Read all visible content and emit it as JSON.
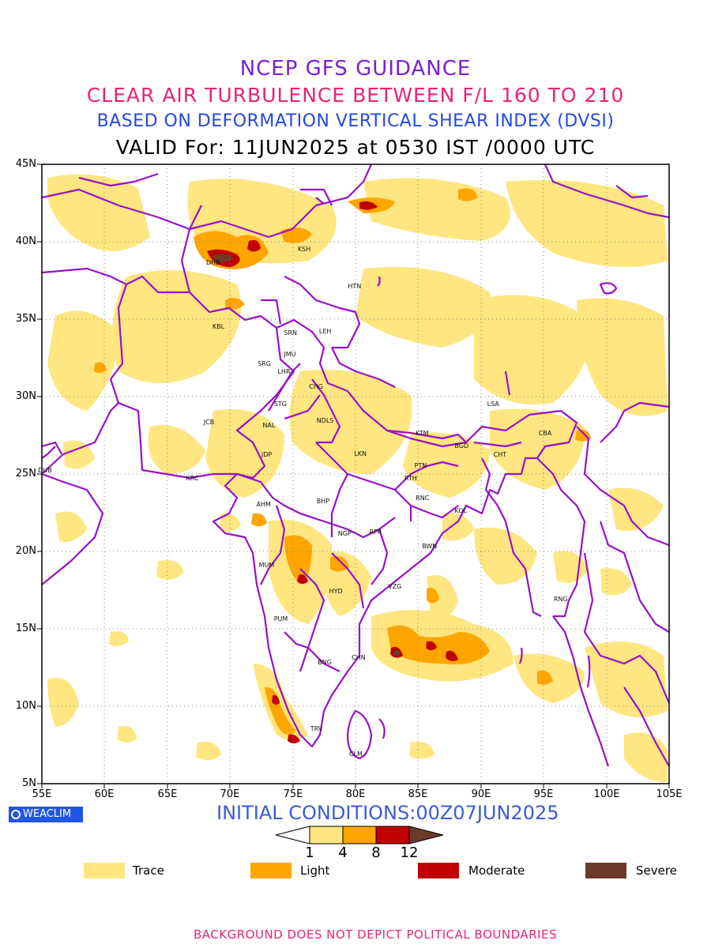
{
  "title": {
    "line1": "NCEP GFS GUIDANCE",
    "line2": "CLEAR AIR TURBULENCE BETWEEN F/L 160 TO 210",
    "line3": "BASED ON DEFORMATION VERTICAL SHEAR INDEX (DVSI)",
    "line4": "VALID For: 11JUN2025 at 0530 IST /0000 UTC"
  },
  "axes": {
    "lat_labels": [
      "45N",
      "40N",
      "35N",
      "30N",
      "25N",
      "20N",
      "15N",
      "10N",
      "5N"
    ],
    "lon_labels": [
      "55E",
      "60E",
      "65E",
      "70E",
      "75E",
      "80E",
      "85E",
      "90E",
      "95E",
      "100E",
      "105E"
    ]
  },
  "stations": [
    {
      "code": "KSH",
      "lon": 75.9,
      "lat": 39.5
    },
    {
      "code": "DHB",
      "lon": 68.6,
      "lat": 38.6
    },
    {
      "code": "HTN",
      "lon": 79.9,
      "lat": 37.1
    },
    {
      "code": "KBL",
      "lon": 69.1,
      "lat": 34.5
    },
    {
      "code": "SRN",
      "lon": 74.8,
      "lat": 34.1
    },
    {
      "code": "LEH",
      "lon": 77.6,
      "lat": 34.2
    },
    {
      "code": "JMU",
      "lon": 74.8,
      "lat": 32.7
    },
    {
      "code": "SRG",
      "lon": 72.7,
      "lat": 32.1
    },
    {
      "code": "LHR",
      "lon": 74.3,
      "lat": 31.6
    },
    {
      "code": "CHG",
      "lon": 76.8,
      "lat": 30.6
    },
    {
      "code": "STG",
      "lon": 74.0,
      "lat": 29.5
    },
    {
      "code": "JCB",
      "lon": 68.4,
      "lat": 28.3
    },
    {
      "code": "NAL",
      "lon": 73.1,
      "lat": 28.1
    },
    {
      "code": "NDLS",
      "lon": 77.4,
      "lat": 28.4
    },
    {
      "code": "LSA",
      "lon": 91.0,
      "lat": 29.5
    },
    {
      "code": "KTM",
      "lon": 85.3,
      "lat": 27.6
    },
    {
      "code": "BGD",
      "lon": 88.4,
      "lat": 26.8
    },
    {
      "code": "CHT",
      "lon": 91.5,
      "lat": 26.2
    },
    {
      "code": "CBA",
      "lon": 95.1,
      "lat": 27.6
    },
    {
      "code": "JDP",
      "lon": 73.0,
      "lat": 26.2
    },
    {
      "code": "LKN",
      "lon": 80.4,
      "lat": 26.3
    },
    {
      "code": "PTN",
      "lon": 85.2,
      "lat": 25.5
    },
    {
      "code": "DUB",
      "lon": 55.2,
      "lat": 25.2
    },
    {
      "code": "KRC",
      "lon": 67.0,
      "lat": 24.7
    },
    {
      "code": "RTH",
      "lon": 84.4,
      "lat": 24.7
    },
    {
      "code": "BHP",
      "lon": 77.4,
      "lat": 23.2
    },
    {
      "code": "AHM",
      "lon": 72.6,
      "lat": 23.0
    },
    {
      "code": "RNC",
      "lon": 85.3,
      "lat": 23.4
    },
    {
      "code": "KOL",
      "lon": 88.4,
      "lat": 22.6
    },
    {
      "code": "NGP",
      "lon": 79.1,
      "lat": 21.1
    },
    {
      "code": "RPR",
      "lon": 81.6,
      "lat": 21.2
    },
    {
      "code": "BWN",
      "lon": 85.8,
      "lat": 20.3
    },
    {
      "code": "MUM",
      "lon": 72.8,
      "lat": 19.1
    },
    {
      "code": "HYD",
      "lon": 78.4,
      "lat": 17.4
    },
    {
      "code": "VZG",
      "lon": 83.1,
      "lat": 17.7
    },
    {
      "code": "RNG",
      "lon": 96.3,
      "lat": 16.9
    },
    {
      "code": "PUM",
      "lon": 74.0,
      "lat": 15.6
    },
    {
      "code": "CHN",
      "lon": 80.2,
      "lat": 13.1
    },
    {
      "code": "BNG",
      "lon": 77.5,
      "lat": 12.8
    },
    {
      "code": "TRV",
      "lon": 76.9,
      "lat": 8.5
    },
    {
      "code": "CLM",
      "lon": 80.0,
      "lat": 6.9
    }
  ],
  "logo": {
    "text": "WEACLIM"
  },
  "initial_conditions": "INITIAL CONDITIONS:00Z07JUN2025",
  "colorbar": {
    "ticks": [
      "1",
      "4",
      "8",
      "12"
    ],
    "colors": [
      "#ffe680",
      "#ffa500",
      "#c00000",
      "#6b3a2a"
    ]
  },
  "legend": [
    {
      "label": "Trace",
      "color": "#ffe680"
    },
    {
      "label": "Light",
      "color": "#ffa500"
    },
    {
      "label": "Moderate",
      "color": "#c00000"
    },
    {
      "label": "Severe",
      "color": "#6b3a2a"
    }
  ],
  "footer": "BACKGROUND DOES NOT DEPICT POLITICAL BOUNDARIES"
}
